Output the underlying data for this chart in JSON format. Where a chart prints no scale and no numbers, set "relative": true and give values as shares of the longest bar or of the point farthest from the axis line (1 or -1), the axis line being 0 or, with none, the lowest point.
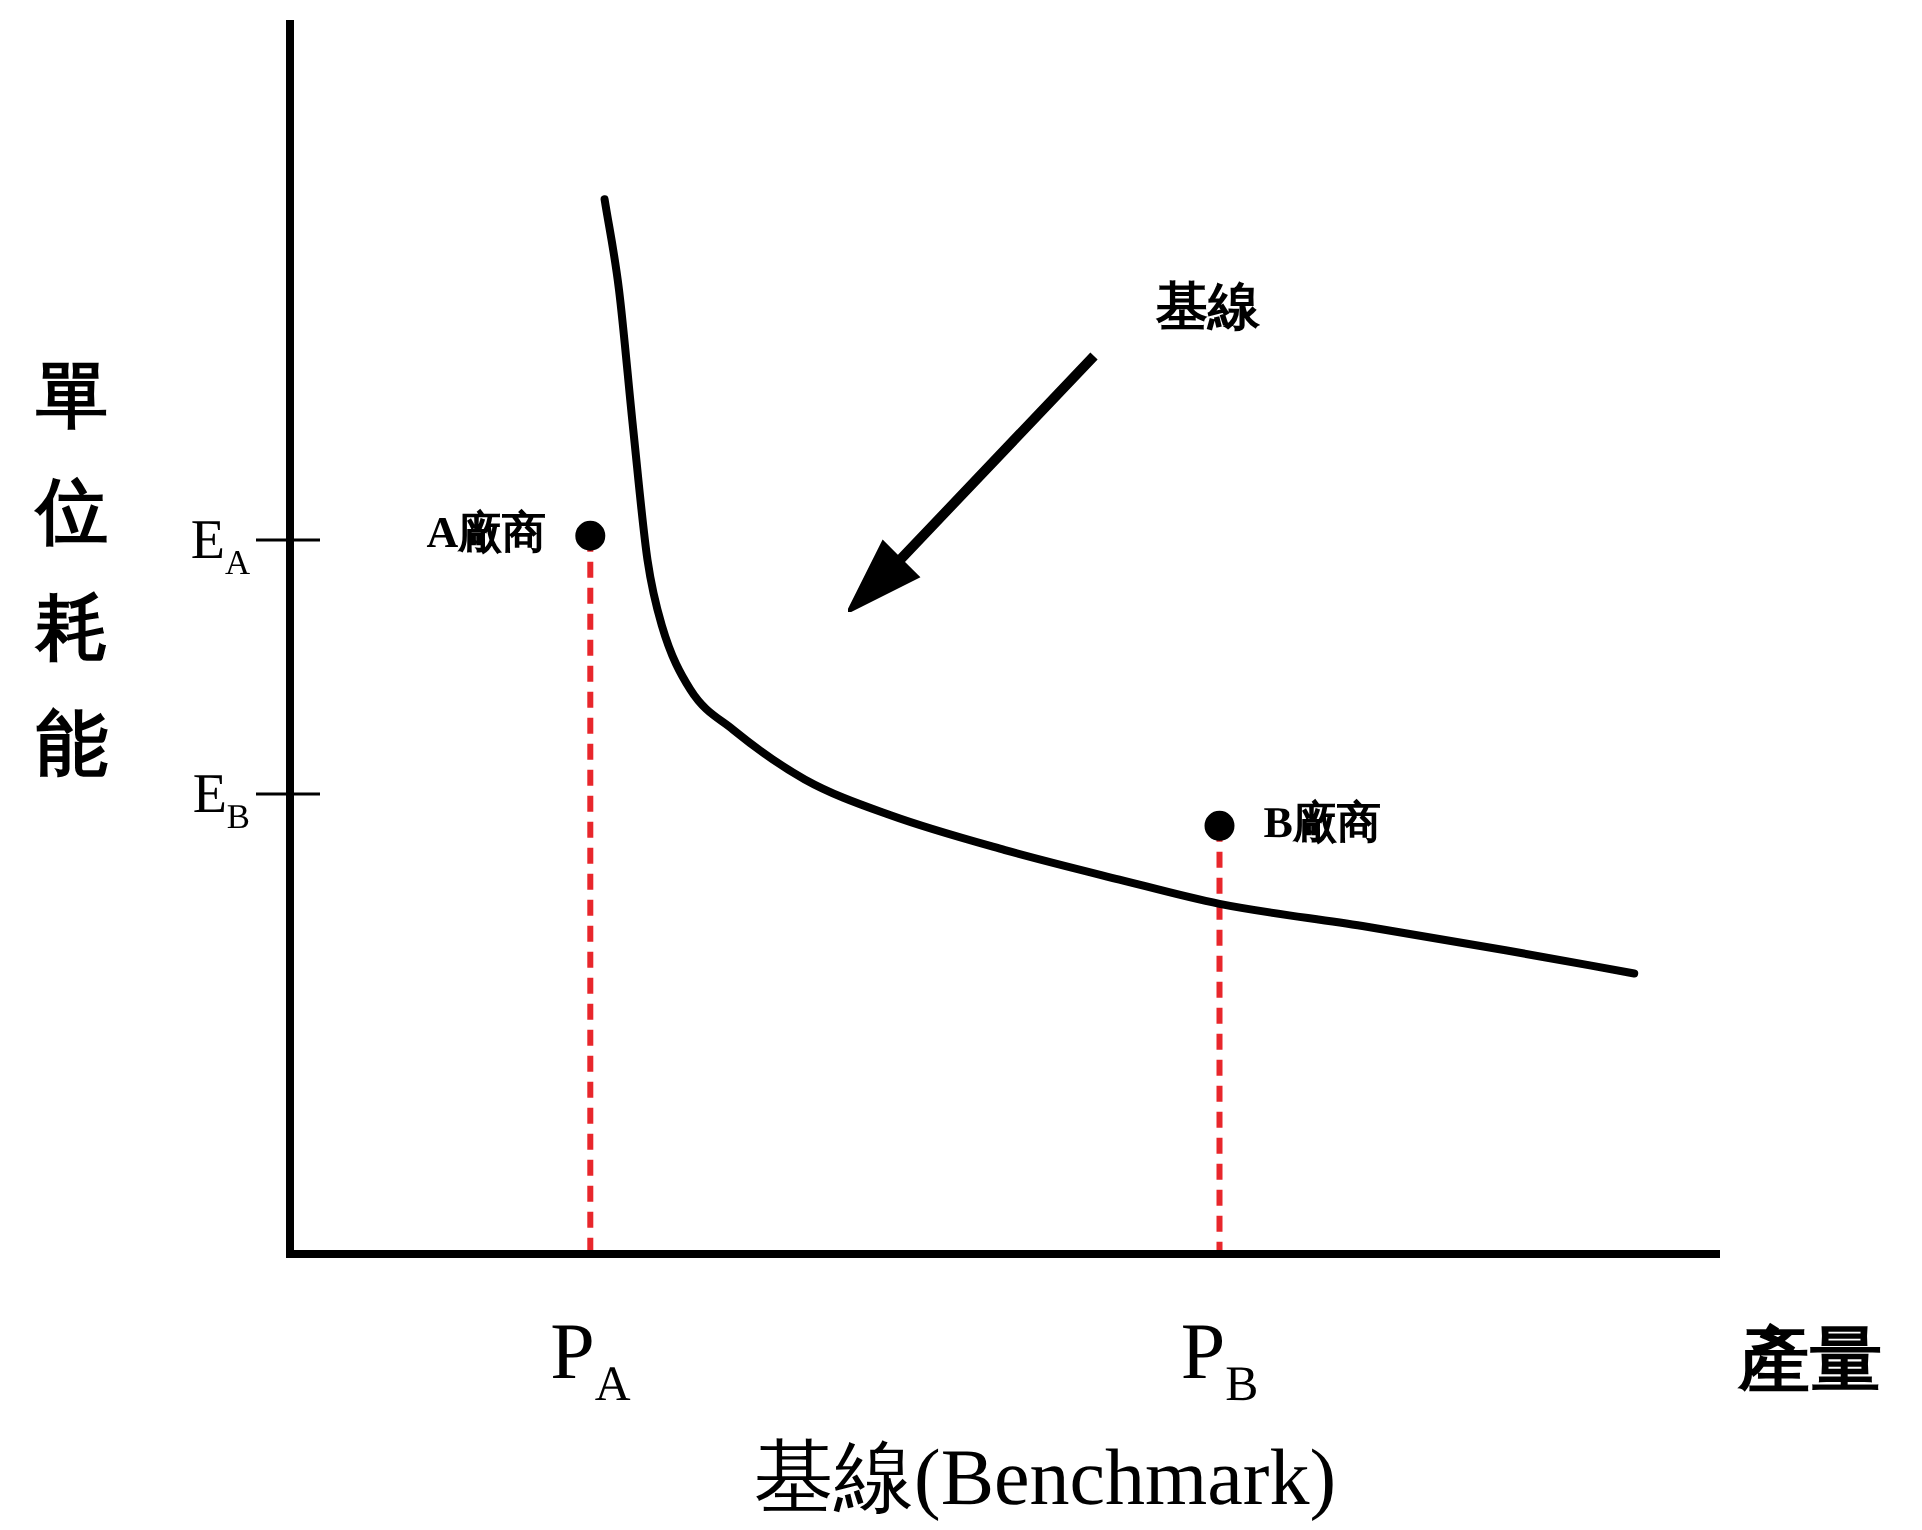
{
  "chart_data": {
    "type": "line",
    "title": "基線(Benchmark)",
    "ylabel": "單位耗能",
    "xlabel": "產量",
    "relative": true,
    "annotations": [
      "基線",
      "E$_{A}$",
      "E$_{B}$"
    ],
    "categories": [
      null,
      null,
      null,
      null,
      null,
      null,
      null,
      null,
      null,
      null,
      null,
      null,
      null,
      null,
      null,
      null,
      null,
      null,
      null,
      null,
      null,
      "P$_{A}$",
      null,
      null,
      null,
      null,
      null,
      null,
      null,
      null,
      null,
      null,
      null,
      null,
      null,
      null,
      null,
      null,
      null,
      null,
      null,
      null,
      null,
      null,
      null,
      null,
      null,
      null,
      null,
      null,
      null,
      null,
      null,
      null,
      null,
      null,
      null,
      null,
      null,
      null,
      null,
      null,
      null,
      null,
      null,
      "P$_{B}$",
      null,
      null,
      null,
      null,
      null,
      null,
      null,
      null,
      null,
      null,
      null,
      null,
      null,
      null,
      null,
      null,
      null,
      null,
      null,
      null,
      null,
      null,
      null,
      null,
      null,
      null,
      null,
      null,
      null,
      null,
      null,
      null,
      null,
      null,
      null
    ],
    "series": [
      {
        "color": "#000000",
        "values": [
          null,
          null,
          null,
          null,
          null,
          null,
          null,
          null,
          null,
          null,
          null,
          null,
          null,
          null,
          null,
          null,
          null,
          null,
          null,
          null,
          null,
          null,
          1.0,
          0.915,
          0.782,
          0.658,
          0.596,
          null,
          0.535,
          null,
          null,
          0.497,
          null,
          null,
          null,
          null,
          0.45,
          null,
          null,
          null,
          null,
          null,
          0.416,
          null,
          null,
          null,
          null,
          null,
          null,
          null,
          0.383,
          null,
          null,
          null,
          null,
          null,
          null,
          null,
          0.355,
          null,
          null,
          null,
          null,
          null,
          null,
          0.332,
          null,
          null,
          null,
          null,
          null,
          null,
          null,
          null,
          null,
          0.311,
          null,
          null,
          null,
          null,
          null,
          null,
          null,
          null,
          null,
          0.288,
          null,
          null,
          null,
          null,
          null,
          null,
          null,
          null,
          0.266,
          null,
          null,
          null,
          null,
          null,
          null
        ]
      },
      {
        "type": "lollipop",
        "name": "A廠商",
        "color": "#000000",
        "values": [
          null,
          null,
          null,
          null,
          null,
          null,
          null,
          null,
          null,
          null,
          null,
          null,
          null,
          null,
          null,
          null,
          null,
          null,
          null,
          null,
          null,
          0.681,
          null,
          null,
          null,
          null,
          null,
          null,
          null,
          null,
          null,
          null,
          null,
          null,
          null,
          null,
          null,
          null,
          null,
          null,
          null,
          null,
          null,
          null,
          null,
          null,
          null,
          null,
          null,
          null,
          null,
          null,
          null,
          null,
          null,
          null,
          null,
          null,
          null,
          null,
          null,
          null,
          null,
          null,
          null,
          null,
          null,
          null,
          null,
          null,
          null,
          null,
          null,
          null,
          null,
          null,
          null,
          null,
          null,
          null,
          null,
          null,
          null,
          null,
          null,
          null,
          null,
          null,
          null,
          null,
          null,
          null,
          null,
          null,
          null,
          null,
          null,
          null,
          null,
          null,
          null
        ]
      },
      {
        "type": "lollipop",
        "name": "B廠商",
        "color": "#000000",
        "values": [
          null,
          null,
          null,
          null,
          null,
          null,
          null,
          null,
          null,
          null,
          null,
          null,
          null,
          null,
          null,
          null,
          null,
          null,
          null,
          null,
          null,
          null,
          null,
          null,
          null,
          null,
          null,
          null,
          null,
          null,
          null,
          null,
          null,
          null,
          null,
          null,
          null,
          null,
          null,
          null,
          null,
          null,
          null,
          null,
          null,
          null,
          null,
          null,
          null,
          null,
          null,
          null,
          null,
          null,
          null,
          null,
          null,
          null,
          null,
          null,
          null,
          null,
          null,
          null,
          null,
          0.406,
          null,
          null,
          null,
          null,
          null,
          null,
          null,
          null,
          null,
          null,
          null,
          null,
          null,
          null,
          null,
          null,
          null,
          null,
          null,
          null,
          null,
          null,
          null,
          null,
          null,
          null,
          null,
          null,
          null,
          null,
          null,
          null,
          null,
          null,
          null
        ]
      }
    ]
  }
}
